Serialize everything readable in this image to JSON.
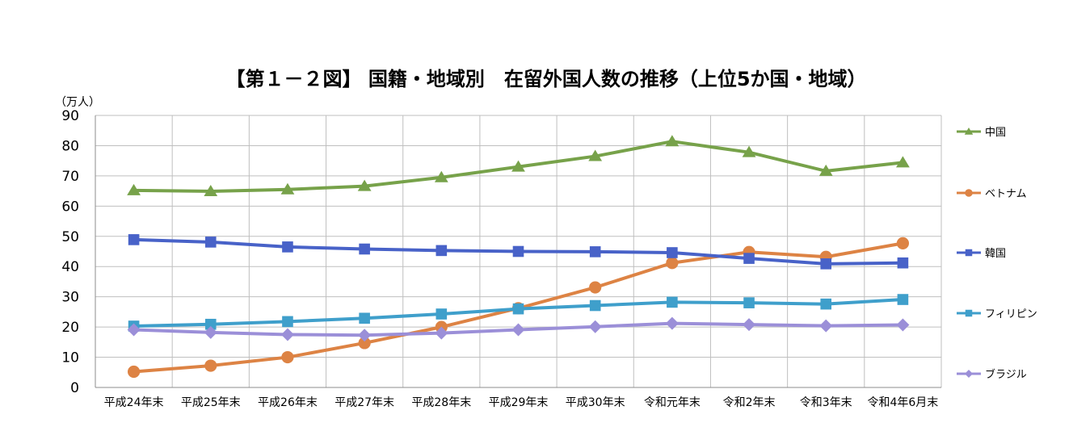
{
  "chart_data": {
    "type": "line",
    "title": "【第１－２図】 国籍・地域別　在留外国人数の推移（上位5か国・地域）",
    "unit_label": "（万人）",
    "ylim": [
      0,
      90
    ],
    "yticks": [
      0,
      10,
      20,
      30,
      40,
      50,
      60,
      70,
      80,
      90
    ],
    "grid": true,
    "legend_position": "right",
    "categories": [
      "平成24年末",
      "平成25年末",
      "平成26年末",
      "平成27年末",
      "平成28年末",
      "平成29年末",
      "平成30年末",
      "令和元年末",
      "令和2年末",
      "令和3年末",
      "令和4年6月末"
    ],
    "series": [
      {
        "name": "中国",
        "color": "#77a24a",
        "marker": "triangle",
        "values": [
          65.2,
          64.9,
          65.5,
          66.6,
          69.5,
          73.0,
          76.5,
          81.4,
          77.8,
          71.6,
          74.4
        ]
      },
      {
        "name": "ベトナム",
        "color": "#dd8344",
        "marker": "circle",
        "values": [
          5.2,
          7.2,
          10.0,
          14.7,
          20.0,
          26.2,
          33.1,
          41.2,
          44.8,
          43.2,
          47.7
        ]
      },
      {
        "name": "韓国",
        "color": "#4862c8",
        "marker": "square",
        "values": [
          48.9,
          48.1,
          46.5,
          45.8,
          45.3,
          45.0,
          44.9,
          44.6,
          42.7,
          40.9,
          41.2
        ]
      },
      {
        "name": "フィリピン",
        "color": "#3f9fcb",
        "marker": "square",
        "values": [
          20.3,
          20.9,
          21.8,
          22.9,
          24.3,
          26.0,
          27.1,
          28.2,
          28.0,
          27.6,
          29.1
        ]
      },
      {
        "name": "ブラジル",
        "color": "#9b8fd8",
        "marker": "diamond",
        "values": [
          19.1,
          18.2,
          17.5,
          17.3,
          18.0,
          19.1,
          20.1,
          21.2,
          20.8,
          20.4,
          20.7
        ]
      }
    ]
  }
}
